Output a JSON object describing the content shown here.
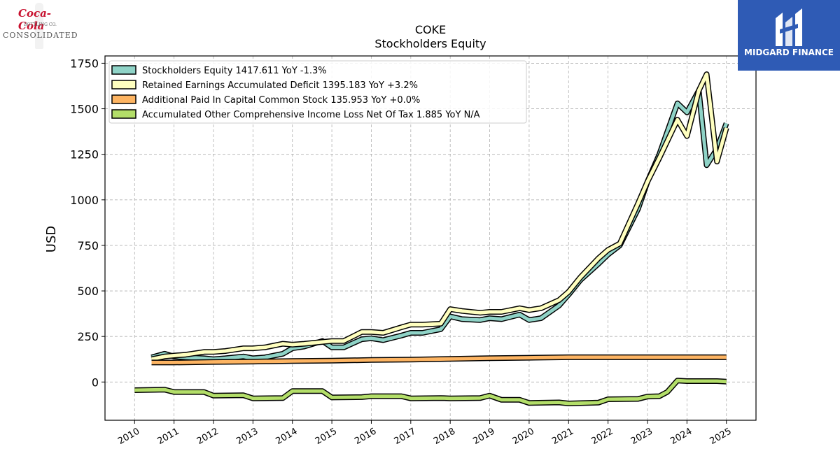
{
  "header": {
    "company_ticker": "COKE",
    "chart_subtitle": "Stockholders  Equity"
  },
  "logos": {
    "left_script": "Coca-Cola",
    "left_sub": "BOTTLING CO.",
    "left_word": "CONSOLIDATED",
    "right_brand": "MIDGARD FINANCE",
    "right_color": "#2f5bb5"
  },
  "chart_data": {
    "type": "line",
    "title": "COKE",
    "subtitle": "Stockholders  Equity",
    "xlabel": "",
    "ylabel": "USD",
    "xlim": [
      2009.25,
      2025.75
    ],
    "ylim": [
      -210,
      1790
    ],
    "yticks": [
      0,
      250,
      500,
      750,
      1000,
      1250,
      1500,
      1750
    ],
    "xticks": [
      2010,
      2011,
      2012,
      2013,
      2014,
      2015,
      2016,
      2017,
      2018,
      2019,
      2020,
      2021,
      2022,
      2023,
      2024,
      2025
    ],
    "grid": true,
    "legend_position": "top-left",
    "series": [
      {
        "name": "Stockholders Equity  1417.611 YoY -1.3%",
        "color": "#8fd3c7",
        "x": [
          2010.43,
          2010.76,
          2011.0,
          2011.3,
          2011.76,
          2012.0,
          2012.3,
          2012.76,
          2013.0,
          2013.3,
          2013.76,
          2014.0,
          2014.3,
          2014.76,
          2015.0,
          2015.3,
          2015.76,
          2016.0,
          2016.3,
          2016.76,
          2017.0,
          2017.3,
          2017.76,
          2018.0,
          2018.3,
          2018.76,
          2019.0,
          2019.3,
          2019.76,
          2020.0,
          2020.3,
          2020.76,
          2021.0,
          2021.3,
          2021.76,
          2022.0,
          2022.3,
          2022.76,
          2023.0,
          2023.3,
          2023.76,
          2024.0,
          2024.3,
          2024.5,
          2024.76,
          2025.0
        ],
        "values": [
          135,
          155,
          140,
          135,
          130,
          125,
          130,
          140,
          130,
          135,
          155,
          185,
          195,
          225,
          190,
          190,
          235,
          240,
          230,
          255,
          270,
          270,
          290,
          360,
          345,
          340,
          350,
          345,
          370,
          340,
          350,
          420,
          480,
          560,
          650,
          700,
          750,
          950,
          1100,
          1250,
          1530,
          1480,
          1600,
          1190,
          1280,
          1420
        ]
      },
      {
        "name": "Retained Earnings Accumulated Deficit  1395.183 YoY +3.2%",
        "color": "#ffffbf",
        "x": [
          2010.43,
          2010.76,
          2011.0,
          2011.3,
          2011.76,
          2012.0,
          2012.3,
          2012.76,
          2013.0,
          2013.3,
          2013.76,
          2014.0,
          2014.3,
          2014.76,
          2015.0,
          2015.3,
          2015.76,
          2016.0,
          2016.3,
          2016.76,
          2017.0,
          2017.3,
          2017.76,
          2018.0,
          2018.3,
          2018.76,
          2019.0,
          2019.3,
          2019.76,
          2020.0,
          2020.3,
          2020.76,
          2021.0,
          2021.3,
          2021.76,
          2022.0,
          2022.3,
          2022.76,
          2023.0,
          2023.3,
          2023.76,
          2024.0,
          2024.3,
          2024.5,
          2024.76,
          2025.0
        ],
        "values": [
          125,
          140,
          145,
          150,
          165,
          165,
          170,
          185,
          185,
          190,
          210,
          205,
          210,
          220,
          225,
          225,
          275,
          275,
          270,
          300,
          315,
          315,
          320,
          400,
          390,
          380,
          385,
          385,
          405,
          395,
          405,
          450,
          495,
          575,
          680,
          725,
          760,
          980,
          1100,
          1230,
          1440,
          1350,
          1600,
          1690,
          1210,
          1395
        ]
      },
      {
        "name": "Additional Paid In Capital Common Stock  135.953 YoY +0.0%",
        "color": "#fdb462",
        "x": [
          2010.43,
          2011.0,
          2012.0,
          2013.0,
          2014.0,
          2015.0,
          2016.0,
          2017.0,
          2018.0,
          2019.0,
          2020.0,
          2021.0,
          2022.0,
          2023.0,
          2024.0,
          2025.0
        ],
        "values": [
          107,
          107,
          110,
          112,
          115,
          117,
          121,
          123,
          127,
          131,
          133,
          136,
          136,
          136,
          136,
          136
        ]
      },
      {
        "name": "Accumulated Other Comprehensive Income Loss Net Of Tax  1.885 YoY N/A",
        "color": "#b3de69",
        "x": [
          2010.0,
          2010.76,
          2011.0,
          2011.76,
          2012.0,
          2012.76,
          2013.0,
          2013.76,
          2014.0,
          2014.76,
          2015.0,
          2015.76,
          2016.0,
          2016.76,
          2017.0,
          2017.76,
          2018.0,
          2018.76,
          2019.0,
          2019.3,
          2019.76,
          2020.0,
          2020.76,
          2021.0,
          2021.76,
          2022.0,
          2022.76,
          2023.0,
          2023.3,
          2023.5,
          2023.76,
          2024.0,
          2024.76,
          2025.0
        ],
        "values": [
          -45,
          -42,
          -55,
          -55,
          -75,
          -73,
          -90,
          -88,
          -50,
          -50,
          -85,
          -83,
          -78,
          -78,
          -90,
          -88,
          -90,
          -88,
          -75,
          -98,
          -98,
          -115,
          -112,
          -118,
          -113,
          -95,
          -93,
          -80,
          -78,
          -55,
          8,
          5,
          5,
          2
        ]
      }
    ]
  }
}
